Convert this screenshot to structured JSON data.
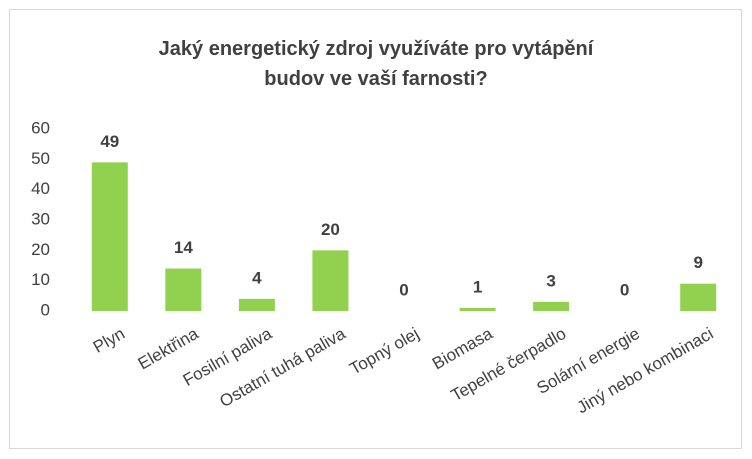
{
  "chart_data": {
    "type": "bar",
    "title": "Jaký energetický zdroj využíváte pro vytápění budov ve vaší farnosti?",
    "categories": [
      "Plyn",
      "Elektřina",
      "Fosilní paliva",
      "Ostatní tuhá paliva",
      "Topný olej",
      "Biomasa",
      "Tepelné čerpadlo",
      "Solární energie",
      "Jiný nebo kombinaci"
    ],
    "values": [
      49,
      14,
      4,
      20,
      0,
      1,
      3,
      0,
      9
    ],
    "color": "#92d050",
    "ylim": [
      0,
      60
    ],
    "yticks": [
      0,
      10,
      20,
      30,
      40,
      50,
      60
    ],
    "grid": false
  }
}
